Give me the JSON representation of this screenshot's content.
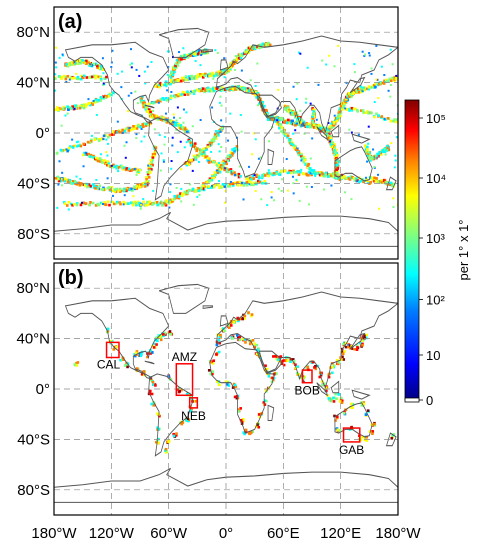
{
  "panels": [
    {
      "label": "(a)",
      "lat_ticks": [
        "80°N",
        "40°N",
        "0°",
        "40°S",
        "80°S"
      ]
    },
    {
      "label": "(b)",
      "lat_ticks": [
        "80°N",
        "40°N",
        "0°",
        "40°S",
        "80°S"
      ]
    }
  ],
  "lon_ticks": [
    "180°W",
    "120°W",
    "60°W",
    "0°",
    "60°E",
    "120°E",
    "180°W"
  ],
  "lon_values": [
    -180,
    -120,
    -60,
    0,
    60,
    120,
    180
  ],
  "lat_values": [
    80,
    40,
    0,
    -40,
    -80
  ],
  "map_extent": {
    "lon": [
      -180,
      180
    ],
    "lat": [
      -100,
      100
    ]
  },
  "regions": [
    {
      "name": "CAL",
      "lon": [
        -125,
        -112
      ],
      "lat": [
        25,
        37
      ]
    },
    {
      "name": "AMZ",
      "lon": [
        -52,
        -35
      ],
      "lat": [
        -5,
        20
      ]
    },
    {
      "name": "NEB",
      "lon": [
        -38,
        -30
      ],
      "lat": [
        -15,
        -7
      ]
    },
    {
      "name": "BOB",
      "lon": [
        80,
        90
      ],
      "lat": [
        5,
        15
      ]
    },
    {
      "name": "GAB",
      "lon": [
        123,
        140
      ],
      "lat": [
        -42,
        -31
      ]
    }
  ],
  "colorbar": {
    "label": "per 1° x 1°",
    "ticks": [
      {
        "label": "10⁵",
        "frac": 0.94
      },
      {
        "label": "10⁴",
        "frac": 0.74
      },
      {
        "label": "10³",
        "frac": 0.54
      },
      {
        "label": "10²",
        "frac": 0.335
      },
      {
        "label": "10",
        "frac": 0.15
      },
      {
        "label": "0",
        "frac": 0.0
      }
    ],
    "colors": [
      "#00007f",
      "#0000ff",
      "#007fff",
      "#00ffff",
      "#7fff7f",
      "#ffff00",
      "#ff7f00",
      "#ff0000",
      "#7f0000"
    ]
  },
  "colors": {
    "region_box": "#ff0000",
    "coast": "#555555",
    "grid": "#888888"
  }
}
